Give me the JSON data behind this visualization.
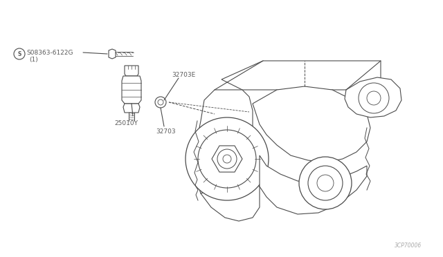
{
  "bg_color": "#ffffff",
  "line_color": "#4a4a4a",
  "text_color": "#5a5a5a",
  "fig_width": 6.4,
  "fig_height": 3.72,
  "dpi": 100,
  "labels": {
    "part1": "S08363-6122G",
    "part1_sub": "(1)",
    "part2": "32703E",
    "part3": "25010Y",
    "part4": "32703",
    "watermark": "3CP70006"
  }
}
